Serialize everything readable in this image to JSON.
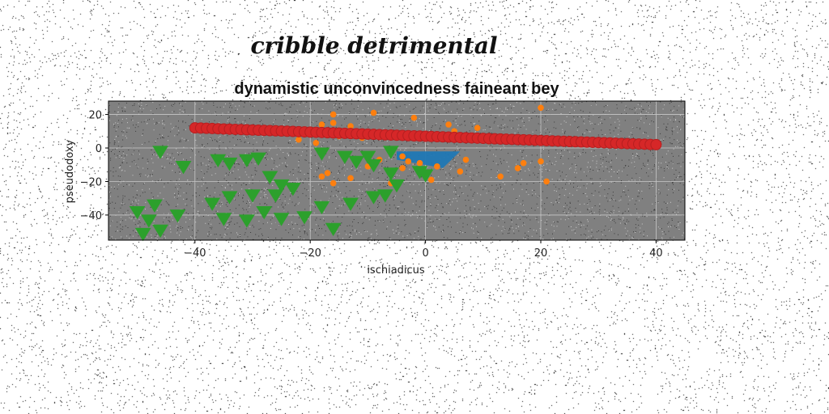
{
  "chart_data": {
    "type": "scatter",
    "suptitle": "cribble detrimental",
    "title": "dynamistic unconvincedness faineant bey",
    "xlabel": "ischiadicus",
    "ylabel": "pseudodoxy",
    "xlim": [
      -55,
      45
    ],
    "ylim": [
      -55,
      28
    ],
    "xticks": [
      -40,
      -20,
      0,
      20,
      40
    ],
    "yticks": [
      20,
      0,
      -20,
      -40
    ],
    "grid": true,
    "background": "#808080",
    "series": [
      {
        "color": "#1f77b4",
        "marker": "area",
        "polygon": [
          [
            -5,
            -2
          ],
          [
            6,
            -2
          ],
          [
            3,
            -12
          ],
          [
            -5,
            -7
          ]
        ]
      },
      {
        "color": "#ff7f0e",
        "marker": "circle",
        "points": [
          [
            20,
            24
          ],
          [
            -9,
            21
          ],
          [
            -16,
            20
          ],
          [
            -2,
            18
          ],
          [
            -16,
            15
          ],
          [
            -18,
            14
          ],
          [
            4,
            14
          ],
          [
            -13,
            13
          ],
          [
            9,
            12
          ],
          [
            5,
            10
          ],
          [
            -6,
            9
          ],
          [
            -2,
            8
          ],
          [
            3,
            8
          ],
          [
            -15,
            7
          ],
          [
            -11,
            6
          ],
          [
            -22,
            5
          ],
          [
            11,
            4
          ],
          [
            -19,
            3
          ],
          [
            7,
            -7
          ],
          [
            -8,
            -7
          ],
          [
            -3,
            -8
          ],
          [
            -1,
            -9
          ],
          [
            2,
            -11
          ],
          [
            -10,
            -11
          ],
          [
            17,
            -9
          ],
          [
            -4,
            -12
          ],
          [
            16,
            -12
          ],
          [
            6,
            -14
          ],
          [
            -17,
            -15
          ],
          [
            -18,
            -17
          ],
          [
            -13,
            -18
          ],
          [
            13,
            -17
          ],
          [
            1,
            -19
          ],
          [
            21,
            -20
          ],
          [
            -16,
            -21
          ],
          [
            -6,
            -21
          ],
          [
            20,
            -8
          ],
          [
            -4,
            -5
          ]
        ]
      },
      {
        "color": "#2ca02c",
        "marker": "triangle_down",
        "points": [
          [
            -46,
            -2
          ],
          [
            -42,
            -11
          ],
          [
            -36,
            -7
          ],
          [
            -34,
            -9
          ],
          [
            -31,
            -7
          ],
          [
            -29,
            -6
          ],
          [
            -27,
            -17
          ],
          [
            -25,
            -22
          ],
          [
            -23,
            -24
          ],
          [
            -26,
            -28
          ],
          [
            -30,
            -28
          ],
          [
            -34,
            -29
          ],
          [
            -37,
            -33
          ],
          [
            -43,
            -40
          ],
          [
            -47,
            -34
          ],
          [
            -50,
            -38
          ],
          [
            -48,
            -43
          ],
          [
            -46,
            -49
          ],
          [
            -49,
            -51
          ],
          [
            -35,
            -42
          ],
          [
            -31,
            -43
          ],
          [
            -28,
            -38
          ],
          [
            -25,
            -42
          ],
          [
            -21,
            -41
          ],
          [
            -18,
            -35
          ],
          [
            -16,
            -48
          ],
          [
            -14,
            -5
          ],
          [
            -12,
            -8
          ],
          [
            -9,
            -10
          ],
          [
            -6,
            -15
          ],
          [
            -5,
            -22
          ],
          [
            -7,
            -28
          ],
          [
            -9,
            -29
          ],
          [
            -13,
            -33
          ],
          [
            -18,
            -3
          ],
          [
            -10,
            -5
          ],
          [
            -6,
            -2
          ],
          [
            -1,
            -14
          ],
          [
            0,
            -16
          ]
        ]
      },
      {
        "color": "#d62728",
        "marker": "circle",
        "line": {
          "x_start": -40,
          "x_end": 40,
          "y_start": 12,
          "y_end": 2,
          "count": 81
        }
      }
    ]
  }
}
